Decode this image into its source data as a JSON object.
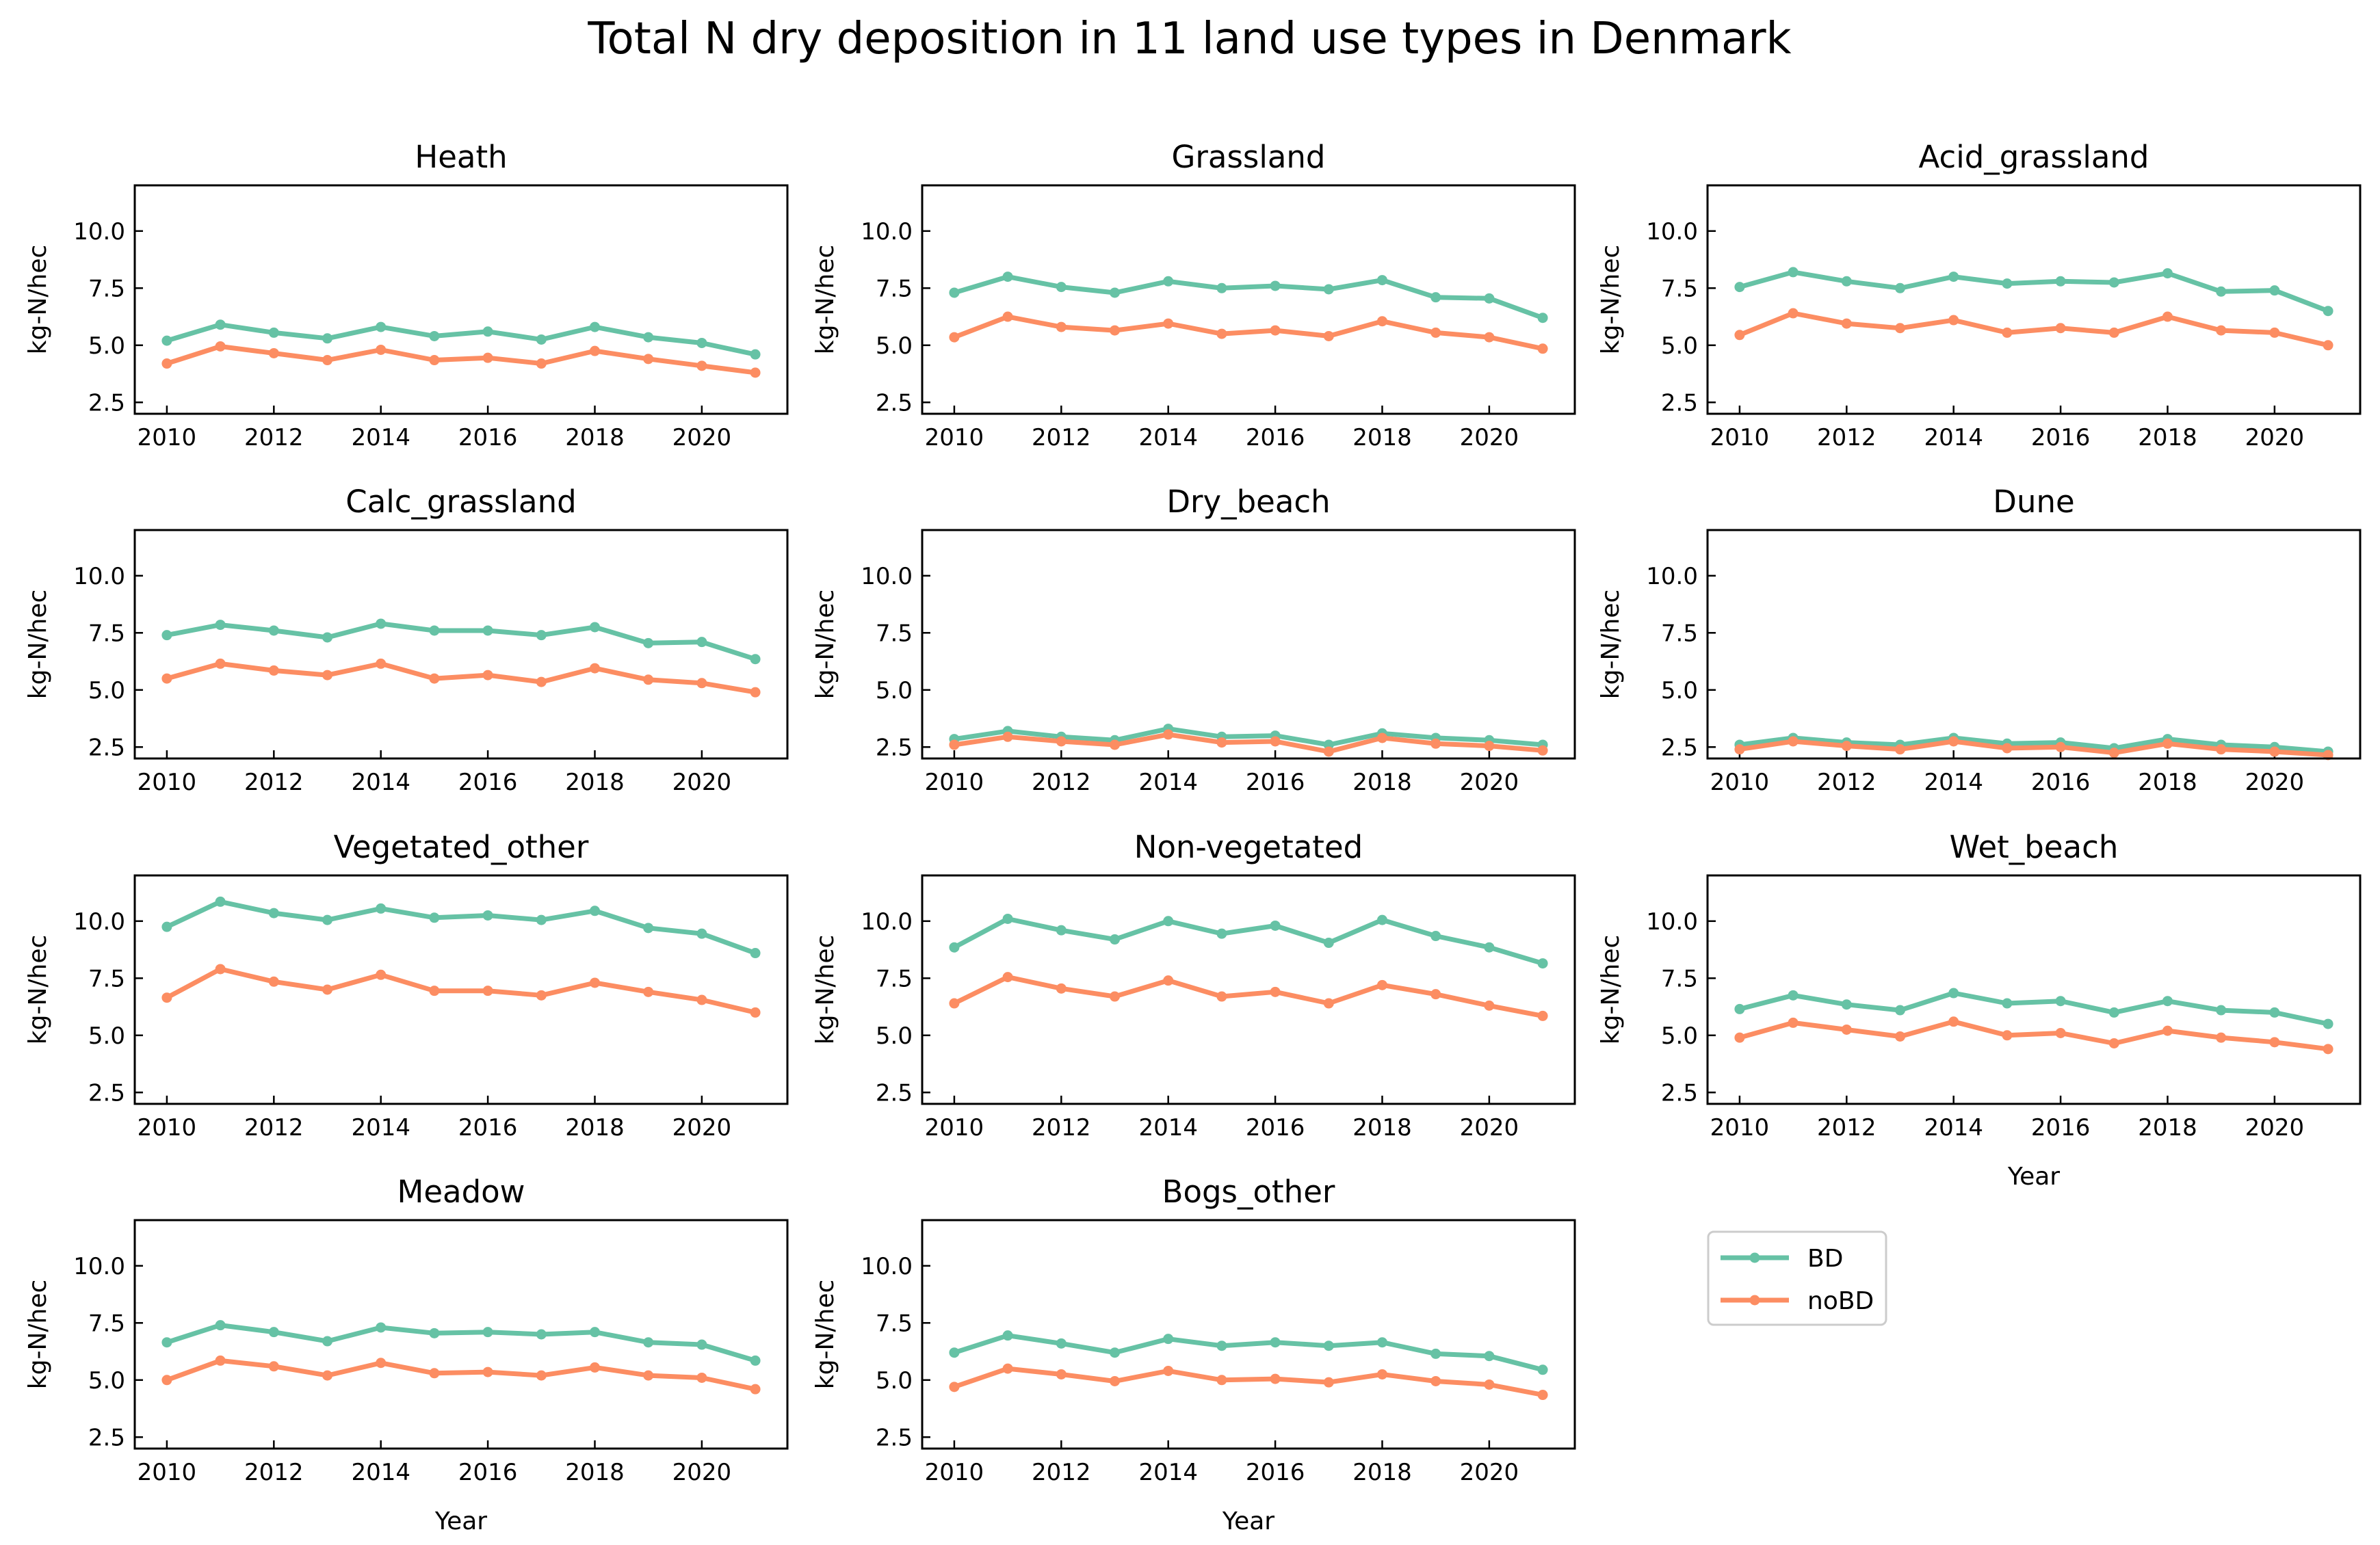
{
  "title": "Total N dry deposition in 11 land use types in Denmark",
  "colors": {
    "BD": "#66c2a5",
    "noBD": "#fc8d62"
  },
  "legend": {
    "placement": "lower-right empty panel",
    "entries": [
      "BD",
      "noBD"
    ]
  },
  "chart_data": [
    {
      "type": "line",
      "title": "Heath",
      "xlabel": "",
      "ylabel": "kg-N/hec",
      "x": [
        2010,
        2011,
        2012,
        2013,
        2014,
        2015,
        2016,
        2017,
        2018,
        2019,
        2020,
        2021
      ],
      "xlim": [
        2009.4,
        2021.6
      ],
      "ylim": [
        2.0,
        12.0
      ],
      "xticks": [
        2010,
        2012,
        2014,
        2016,
        2018,
        2020
      ],
      "yticks": [
        2.5,
        5.0,
        7.5,
        10.0
      ],
      "series": [
        {
          "name": "BD",
          "values": [
            5.2,
            5.9,
            5.55,
            5.3,
            5.8,
            5.4,
            5.6,
            5.25,
            5.8,
            5.35,
            5.1,
            4.6
          ]
        },
        {
          "name": "noBD",
          "values": [
            4.2,
            4.95,
            4.65,
            4.35,
            4.8,
            4.35,
            4.45,
            4.2,
            4.75,
            4.4,
            4.1,
            3.8
          ]
        }
      ]
    },
    {
      "type": "line",
      "title": "Grassland",
      "xlabel": "",
      "ylabel": "kg-N/hec",
      "x": [
        2010,
        2011,
        2012,
        2013,
        2014,
        2015,
        2016,
        2017,
        2018,
        2019,
        2020,
        2021
      ],
      "xlim": [
        2009.4,
        2021.6
      ],
      "ylim": [
        2.0,
        12.0
      ],
      "xticks": [
        2010,
        2012,
        2014,
        2016,
        2018,
        2020
      ],
      "yticks": [
        2.5,
        5.0,
        7.5,
        10.0
      ],
      "series": [
        {
          "name": "BD",
          "values": [
            7.3,
            8.0,
            7.55,
            7.3,
            7.8,
            7.5,
            7.6,
            7.45,
            7.85,
            7.1,
            7.05,
            6.2
          ]
        },
        {
          "name": "noBD",
          "values": [
            5.35,
            6.25,
            5.8,
            5.65,
            5.95,
            5.5,
            5.65,
            5.4,
            6.05,
            5.55,
            5.35,
            4.85
          ]
        }
      ]
    },
    {
      "type": "line",
      "title": "Acid_grassland",
      "xlabel": "",
      "ylabel": "kg-N/hec",
      "x": [
        2010,
        2011,
        2012,
        2013,
        2014,
        2015,
        2016,
        2017,
        2018,
        2019,
        2020,
        2021
      ],
      "xlim": [
        2009.4,
        2021.6
      ],
      "ylim": [
        2.0,
        12.0
      ],
      "xticks": [
        2010,
        2012,
        2014,
        2016,
        2018,
        2020
      ],
      "yticks": [
        2.5,
        5.0,
        7.5,
        10.0
      ],
      "series": [
        {
          "name": "BD",
          "values": [
            7.55,
            8.2,
            7.8,
            7.5,
            8.0,
            7.7,
            7.8,
            7.75,
            8.15,
            7.35,
            7.4,
            6.5
          ]
        },
        {
          "name": "noBD",
          "values": [
            5.45,
            6.4,
            5.95,
            5.75,
            6.1,
            5.55,
            5.75,
            5.55,
            6.25,
            5.65,
            5.55,
            5.0
          ]
        }
      ]
    },
    {
      "type": "line",
      "title": "Calc_grassland",
      "xlabel": "",
      "ylabel": "kg-N/hec",
      "x": [
        2010,
        2011,
        2012,
        2013,
        2014,
        2015,
        2016,
        2017,
        2018,
        2019,
        2020,
        2021
      ],
      "xlim": [
        2009.4,
        2021.6
      ],
      "ylim": [
        2.0,
        12.0
      ],
      "xticks": [
        2010,
        2012,
        2014,
        2016,
        2018,
        2020
      ],
      "yticks": [
        2.5,
        5.0,
        7.5,
        10.0
      ],
      "series": [
        {
          "name": "BD",
          "values": [
            7.4,
            7.85,
            7.6,
            7.3,
            7.9,
            7.6,
            7.6,
            7.4,
            7.75,
            7.05,
            7.1,
            6.35
          ]
        },
        {
          "name": "noBD",
          "values": [
            5.5,
            6.15,
            5.85,
            5.65,
            6.15,
            5.5,
            5.65,
            5.35,
            5.95,
            5.45,
            5.3,
            4.9
          ]
        }
      ]
    },
    {
      "type": "line",
      "title": "Dry_beach",
      "xlabel": "",
      "ylabel": "kg-N/hec",
      "x": [
        2010,
        2011,
        2012,
        2013,
        2014,
        2015,
        2016,
        2017,
        2018,
        2019,
        2020,
        2021
      ],
      "xlim": [
        2009.4,
        2021.6
      ],
      "ylim": [
        2.0,
        12.0
      ],
      "xticks": [
        2010,
        2012,
        2014,
        2016,
        2018,
        2020
      ],
      "yticks": [
        2.5,
        5.0,
        7.5,
        10.0
      ],
      "series": [
        {
          "name": "BD",
          "values": [
            2.85,
            3.2,
            2.95,
            2.8,
            3.3,
            2.95,
            3.0,
            2.6,
            3.1,
            2.9,
            2.8,
            2.6
          ]
        },
        {
          "name": "noBD",
          "values": [
            2.6,
            2.95,
            2.75,
            2.6,
            3.05,
            2.7,
            2.75,
            2.3,
            2.9,
            2.65,
            2.55,
            2.35
          ]
        }
      ]
    },
    {
      "type": "line",
      "title": "Dune",
      "xlabel": "",
      "ylabel": "kg-N/hec",
      "x": [
        2010,
        2011,
        2012,
        2013,
        2014,
        2015,
        2016,
        2017,
        2018,
        2019,
        2020,
        2021
      ],
      "xlim": [
        2009.4,
        2021.6
      ],
      "ylim": [
        2.0,
        12.0
      ],
      "xticks": [
        2010,
        2012,
        2014,
        2016,
        2018,
        2020
      ],
      "yticks": [
        2.5,
        5.0,
        7.5,
        10.0
      ],
      "series": [
        {
          "name": "BD",
          "values": [
            2.6,
            2.9,
            2.7,
            2.6,
            2.9,
            2.65,
            2.7,
            2.45,
            2.85,
            2.6,
            2.5,
            2.3
          ]
        },
        {
          "name": "noBD",
          "values": [
            2.4,
            2.75,
            2.55,
            2.4,
            2.75,
            2.45,
            2.5,
            2.25,
            2.65,
            2.4,
            2.3,
            2.15
          ]
        }
      ]
    },
    {
      "type": "line",
      "title": "Vegetated_other",
      "xlabel": "",
      "ylabel": "kg-N/hec",
      "x": [
        2010,
        2011,
        2012,
        2013,
        2014,
        2015,
        2016,
        2017,
        2018,
        2019,
        2020,
        2021
      ],
      "xlim": [
        2009.4,
        2021.6
      ],
      "ylim": [
        2.0,
        12.0
      ],
      "xticks": [
        2010,
        2012,
        2014,
        2016,
        2018,
        2020
      ],
      "yticks": [
        2.5,
        5.0,
        7.5,
        10.0
      ],
      "series": [
        {
          "name": "BD",
          "values": [
            9.75,
            10.85,
            10.35,
            10.05,
            10.55,
            10.15,
            10.25,
            10.05,
            10.45,
            9.7,
            9.45,
            8.6
          ]
        },
        {
          "name": "noBD",
          "values": [
            6.65,
            7.9,
            7.35,
            7.0,
            7.65,
            6.95,
            6.95,
            6.75,
            7.3,
            6.9,
            6.55,
            6.0
          ]
        }
      ]
    },
    {
      "type": "line",
      "title": "Non-vegetated",
      "xlabel": "",
      "ylabel": "kg-N/hec",
      "x": [
        2010,
        2011,
        2012,
        2013,
        2014,
        2015,
        2016,
        2017,
        2018,
        2019,
        2020,
        2021
      ],
      "xlim": [
        2009.4,
        2021.6
      ],
      "ylim": [
        2.0,
        12.0
      ],
      "xticks": [
        2010,
        2012,
        2014,
        2016,
        2018,
        2020
      ],
      "yticks": [
        2.5,
        5.0,
        7.5,
        10.0
      ],
      "series": [
        {
          "name": "BD",
          "values": [
            8.85,
            10.1,
            9.6,
            9.2,
            10.0,
            9.45,
            9.8,
            9.05,
            10.05,
            9.35,
            8.85,
            8.15
          ]
        },
        {
          "name": "noBD",
          "values": [
            6.4,
            7.55,
            7.05,
            6.7,
            7.4,
            6.7,
            6.9,
            6.4,
            7.2,
            6.8,
            6.3,
            5.85
          ]
        }
      ]
    },
    {
      "type": "line",
      "title": "Wet_beach",
      "xlabel": "Year",
      "ylabel": "kg-N/hec",
      "x": [
        2010,
        2011,
        2012,
        2013,
        2014,
        2015,
        2016,
        2017,
        2018,
        2019,
        2020,
        2021
      ],
      "xlim": [
        2009.4,
        2021.6
      ],
      "ylim": [
        2.0,
        12.0
      ],
      "xticks": [
        2010,
        2012,
        2014,
        2016,
        2018,
        2020
      ],
      "yticks": [
        2.5,
        5.0,
        7.5,
        10.0
      ],
      "series": [
        {
          "name": "BD",
          "values": [
            6.15,
            6.75,
            6.35,
            6.1,
            6.85,
            6.4,
            6.5,
            6.0,
            6.5,
            6.1,
            6.0,
            5.5
          ]
        },
        {
          "name": "noBD",
          "values": [
            4.9,
            5.55,
            5.25,
            4.95,
            5.6,
            5.0,
            5.1,
            4.65,
            5.2,
            4.9,
            4.7,
            4.4
          ]
        }
      ]
    },
    {
      "type": "line",
      "title": "Meadow",
      "xlabel": "Year",
      "ylabel": "kg-N/hec",
      "x": [
        2010,
        2011,
        2012,
        2013,
        2014,
        2015,
        2016,
        2017,
        2018,
        2019,
        2020,
        2021
      ],
      "xlim": [
        2009.4,
        2021.6
      ],
      "ylim": [
        2.0,
        12.0
      ],
      "xticks": [
        2010,
        2012,
        2014,
        2016,
        2018,
        2020
      ],
      "yticks": [
        2.5,
        5.0,
        7.5,
        10.0
      ],
      "series": [
        {
          "name": "BD",
          "values": [
            6.65,
            7.4,
            7.1,
            6.7,
            7.3,
            7.05,
            7.1,
            7.0,
            7.1,
            6.65,
            6.55,
            5.85
          ]
        },
        {
          "name": "noBD",
          "values": [
            5.0,
            5.85,
            5.6,
            5.2,
            5.75,
            5.3,
            5.35,
            5.2,
            5.55,
            5.2,
            5.1,
            4.6
          ]
        }
      ]
    },
    {
      "type": "line",
      "title": "Bogs_other",
      "xlabel": "Year",
      "ylabel": "kg-N/hec",
      "x": [
        2010,
        2011,
        2012,
        2013,
        2014,
        2015,
        2016,
        2017,
        2018,
        2019,
        2020,
        2021
      ],
      "xlim": [
        2009.4,
        2021.6
      ],
      "ylim": [
        2.0,
        12.0
      ],
      "xticks": [
        2010,
        2012,
        2014,
        2016,
        2018,
        2020
      ],
      "yticks": [
        2.5,
        5.0,
        7.5,
        10.0
      ],
      "series": [
        {
          "name": "BD",
          "values": [
            6.2,
            6.95,
            6.6,
            6.2,
            6.8,
            6.5,
            6.65,
            6.5,
            6.65,
            6.15,
            6.05,
            5.45
          ]
        },
        {
          "name": "noBD",
          "values": [
            4.7,
            5.5,
            5.25,
            4.95,
            5.4,
            5.0,
            5.05,
            4.9,
            5.25,
            4.95,
            4.8,
            4.35
          ]
        }
      ]
    }
  ]
}
